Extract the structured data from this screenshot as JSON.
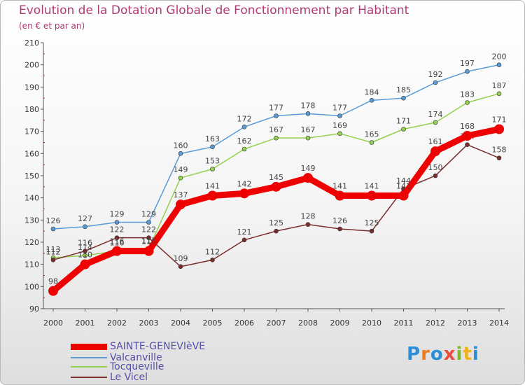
{
  "header": {
    "title": "Evolution de la Dotation Globale de Fonctionnement par Habitant",
    "subtitle": "(en € et par an)"
  },
  "brand": {
    "text": "Proxiti"
  },
  "chart_data": {
    "type": "line",
    "title": "Evolution de la Dotation Globale de Fonctionnement par Habitant",
    "subtitle": "(en € et par an)",
    "x": [
      "2000",
      "2001",
      "2002",
      "2003",
      "2004",
      "2005",
      "2006",
      "2007",
      "2008",
      "2009",
      "2010",
      "2011",
      "2012",
      "2013",
      "2014"
    ],
    "ylim": [
      90,
      210
    ],
    "yticks": [
      90,
      100,
      110,
      120,
      130,
      140,
      150,
      160,
      170,
      180,
      190,
      200,
      210
    ],
    "grid": false,
    "legend_position": "bottom-left",
    "series": [
      {
        "name": "SAINTE-GENEVIèVE",
        "color": "#ee0000",
        "emphasis": true,
        "values": [
          98,
          110,
          116,
          116,
          137,
          141,
          142,
          145,
          149,
          141,
          141,
          141,
          161,
          168,
          171
        ]
      },
      {
        "name": "Valcanville",
        "color": "#5b9bd5",
        "values": [
          126,
          127,
          129,
          129,
          160,
          163,
          172,
          177,
          178,
          177,
          184,
          185,
          192,
          197,
          200
        ]
      },
      {
        "name": "Tocqueville",
        "color": "#92d050",
        "values": [
          113,
          114,
          116,
          117,
          149,
          153,
          162,
          167,
          167,
          169,
          165,
          171,
          174,
          183,
          187
        ]
      },
      {
        "name": "Le Vicel",
        "color": "#7b2d2d",
        "values": [
          112,
          116,
          122,
          122,
          109,
          112,
          121,
          125,
          128,
          126,
          125,
          144,
          150,
          164,
          158
        ]
      }
    ]
  }
}
